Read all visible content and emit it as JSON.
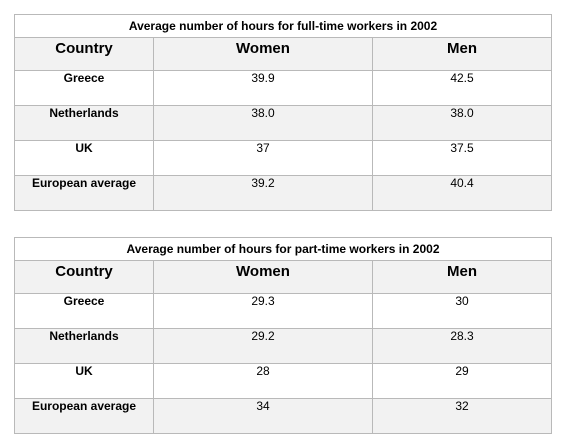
{
  "tables": [
    {
      "title": "Average number of hours for full-time workers in 2002",
      "headers": [
        "Country",
        "Women",
        "Men"
      ],
      "rows": [
        [
          "Greece",
          "39.9",
          "42.5"
        ],
        [
          "Netherlands",
          "38.0",
          "38.0"
        ],
        [
          "UK",
          "37",
          "37.5"
        ],
        [
          "European average",
          "39.2",
          "40.4"
        ]
      ]
    },
    {
      "title": "Average number of hours for part-time workers in 2002",
      "headers": [
        "Country",
        "Women",
        "Men"
      ],
      "rows": [
        [
          "Greece",
          "29.3",
          "30"
        ],
        [
          "Netherlands",
          "29.2",
          "28.3"
        ],
        [
          "UK",
          "28",
          "29"
        ],
        [
          "European average",
          "34",
          "32"
        ]
      ]
    }
  ]
}
